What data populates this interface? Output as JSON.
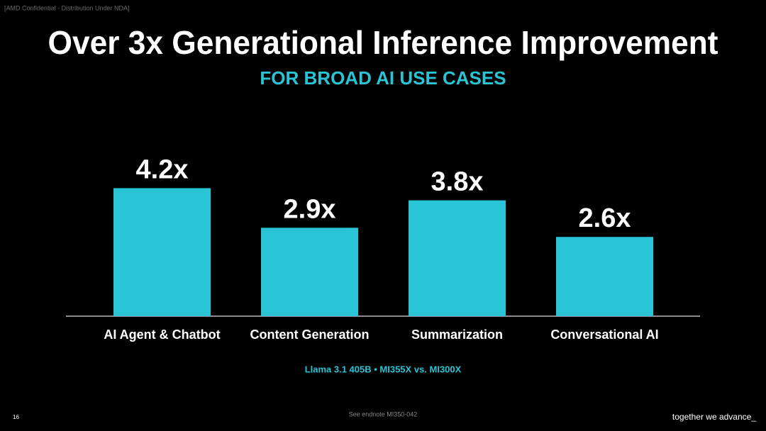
{
  "header": {
    "confidential": "[AMD Confidential - Distribution Under NDA]"
  },
  "chart_data": {
    "type": "bar",
    "title": "Over 3x Generational Inference Improvement",
    "subtitle": "FOR BROAD AI USE CASES",
    "categories": [
      "AI Agent & Chatbot",
      "Content Generation",
      "Summarization",
      "Conversational AI"
    ],
    "values": [
      4.2,
      2.9,
      3.8,
      2.6
    ],
    "value_labels": [
      "4.2x",
      "2.9x",
      "3.8x",
      "2.6x"
    ],
    "color": "#29c4d6",
    "footnote": "Llama 3.1 405B  •  MI355X vs. MI300X"
  },
  "footer": {
    "page_number": "16",
    "endnote": "See endnote MI350-042",
    "tagline": "together we advance_"
  }
}
